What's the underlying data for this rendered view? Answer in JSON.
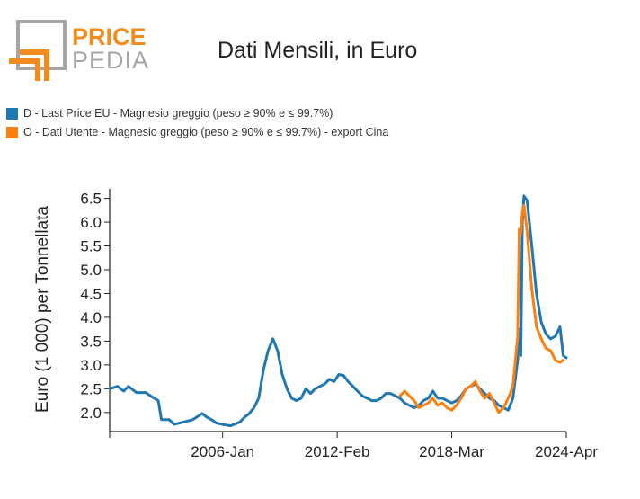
{
  "logo": {
    "line1": "PRICE",
    "line2": "PEDIA",
    "orange": "#f28c1f",
    "grey": "#a6a6a6"
  },
  "title": "Dati Mensili, in Euro",
  "legend": [
    {
      "label": "D - Last Price EU - Magnesio greggio (peso ≥ 90% e ≤ 99.7%)",
      "color": "#1f77b4"
    },
    {
      "label": "O - Dati Utente - Magnesio greggio (peso ≥ 90% e ≤ 99.7%) - export Cina",
      "color": "#ff7f0e"
    }
  ],
  "chart_data": {
    "type": "line",
    "ylabel": "Euro (1 000) per Tonnellata",
    "xlabel": "",
    "xlim": [
      "2000-01",
      "2024-04"
    ],
    "ylim": [
      1.6,
      6.7
    ],
    "yticks": [
      2.0,
      2.5,
      3.0,
      3.5,
      4.0,
      4.5,
      5.0,
      5.5,
      6.0,
      6.5
    ],
    "ytick_labels": [
      "2.0",
      "2.5",
      "3.0",
      "3.5",
      "4.0",
      "4.5",
      "5.0",
      "5.5",
      "6.0",
      "6.5"
    ],
    "xticks": [
      "2000-01",
      "2006-01",
      "2012-02",
      "2018-03",
      "2024-04"
    ],
    "xtick_labels": [
      "",
      "2006-Jan",
      "2012-Feb",
      "2018-Mar",
      "2024-Apr"
    ],
    "grid": false,
    "legend_position": "top-left",
    "series": [
      {
        "name": "D - Last Price EU - Magnesio greggio (peso ≥ 90% e ≤ 99.7%)",
        "color": "#1f77b4",
        "points": [
          [
            "2000-01",
            2.5
          ],
          [
            "2000-06",
            2.55
          ],
          [
            "2000-10",
            2.45
          ],
          [
            "2001-01",
            2.55
          ],
          [
            "2001-06",
            2.42
          ],
          [
            "2001-12",
            2.42
          ],
          [
            "2002-03",
            2.35
          ],
          [
            "2002-08",
            2.25
          ],
          [
            "2002-10",
            1.85
          ],
          [
            "2003-03",
            1.85
          ],
          [
            "2003-06",
            1.75
          ],
          [
            "2003-12",
            1.8
          ],
          [
            "2004-06",
            1.85
          ],
          [
            "2004-12",
            1.98
          ],
          [
            "2005-03",
            1.9
          ],
          [
            "2005-06",
            1.85
          ],
          [
            "2005-09",
            1.78
          ],
          [
            "2006-01",
            1.75
          ],
          [
            "2006-06",
            1.72
          ],
          [
            "2006-12",
            1.8
          ],
          [
            "2007-03",
            1.9
          ],
          [
            "2007-06",
            1.98
          ],
          [
            "2007-09",
            2.1
          ],
          [
            "2007-12",
            2.3
          ],
          [
            "2008-03",
            2.9
          ],
          [
            "2008-06",
            3.3
          ],
          [
            "2008-09",
            3.55
          ],
          [
            "2008-12",
            3.3
          ],
          [
            "2009-03",
            2.8
          ],
          [
            "2009-06",
            2.5
          ],
          [
            "2009-09",
            2.3
          ],
          [
            "2009-12",
            2.25
          ],
          [
            "2010-03",
            2.3
          ],
          [
            "2010-06",
            2.5
          ],
          [
            "2010-09",
            2.4
          ],
          [
            "2010-12",
            2.5
          ],
          [
            "2011-03",
            2.55
          ],
          [
            "2011-06",
            2.6
          ],
          [
            "2011-09",
            2.7
          ],
          [
            "2011-12",
            2.65
          ],
          [
            "2012-03",
            2.8
          ],
          [
            "2012-06",
            2.78
          ],
          [
            "2012-09",
            2.65
          ],
          [
            "2012-12",
            2.55
          ],
          [
            "2013-03",
            2.45
          ],
          [
            "2013-06",
            2.35
          ],
          [
            "2013-09",
            2.3
          ],
          [
            "2013-12",
            2.25
          ],
          [
            "2014-03",
            2.25
          ],
          [
            "2014-06",
            2.3
          ],
          [
            "2014-09",
            2.4
          ],
          [
            "2014-12",
            2.4
          ],
          [
            "2015-03",
            2.35
          ],
          [
            "2015-06",
            2.3
          ],
          [
            "2015-09",
            2.2
          ],
          [
            "2015-12",
            2.15
          ],
          [
            "2016-03",
            2.1
          ],
          [
            "2016-06",
            2.15
          ],
          [
            "2016-09",
            2.25
          ],
          [
            "2016-12",
            2.3
          ],
          [
            "2017-03",
            2.45
          ],
          [
            "2017-06",
            2.3
          ],
          [
            "2017-09",
            2.3
          ],
          [
            "2017-12",
            2.25
          ],
          [
            "2018-03",
            2.2
          ],
          [
            "2018-06",
            2.25
          ],
          [
            "2018-09",
            2.35
          ],
          [
            "2018-12",
            2.5
          ],
          [
            "2019-03",
            2.55
          ],
          [
            "2019-06",
            2.6
          ],
          [
            "2019-09",
            2.5
          ],
          [
            "2019-12",
            2.4
          ],
          [
            "2020-03",
            2.3
          ],
          [
            "2020-06",
            2.25
          ],
          [
            "2020-09",
            2.15
          ],
          [
            "2020-12",
            2.1
          ],
          [
            "2021-03",
            2.05
          ],
          [
            "2021-06",
            2.3
          ],
          [
            "2021-09",
            3.1
          ],
          [
            "2021-10",
            3.75
          ],
          [
            "2021-11",
            3.2
          ],
          [
            "2021-12",
            6.0
          ],
          [
            "2022-01",
            6.55
          ],
          [
            "2022-03",
            6.45
          ],
          [
            "2022-06",
            5.5
          ],
          [
            "2022-09",
            4.5
          ],
          [
            "2022-12",
            3.9
          ],
          [
            "2023-03",
            3.65
          ],
          [
            "2023-06",
            3.55
          ],
          [
            "2023-09",
            3.6
          ],
          [
            "2023-12",
            3.8
          ],
          [
            "2024-02",
            3.2
          ],
          [
            "2024-04",
            3.15
          ]
        ]
      },
      {
        "name": "O - Dati Utente - Magnesio greggio (peso ≥ 90% e ≤ 99.7%) - export Cina",
        "color": "#ff7f0e",
        "points": [
          [
            "2015-06",
            2.35
          ],
          [
            "2015-09",
            2.45
          ],
          [
            "2015-12",
            2.35
          ],
          [
            "2016-03",
            2.25
          ],
          [
            "2016-06",
            2.1
          ],
          [
            "2016-09",
            2.15
          ],
          [
            "2016-12",
            2.2
          ],
          [
            "2017-03",
            2.3
          ],
          [
            "2017-06",
            2.15
          ],
          [
            "2017-09",
            2.2
          ],
          [
            "2017-12",
            2.1
          ],
          [
            "2018-03",
            2.05
          ],
          [
            "2018-06",
            2.15
          ],
          [
            "2018-09",
            2.3
          ],
          [
            "2018-12",
            2.5
          ],
          [
            "2019-03",
            2.55
          ],
          [
            "2019-06",
            2.65
          ],
          [
            "2019-09",
            2.45
          ],
          [
            "2019-12",
            2.3
          ],
          [
            "2020-03",
            2.4
          ],
          [
            "2020-06",
            2.2
          ],
          [
            "2020-09",
            2.0
          ],
          [
            "2020-12",
            2.1
          ],
          [
            "2021-03",
            2.3
          ],
          [
            "2021-06",
            2.55
          ],
          [
            "2021-09",
            3.6
          ],
          [
            "2021-10",
            5.85
          ],
          [
            "2021-11",
            5.75
          ],
          [
            "2021-12",
            6.2
          ],
          [
            "2022-01",
            6.35
          ],
          [
            "2022-03",
            5.8
          ],
          [
            "2022-06",
            4.6
          ],
          [
            "2022-09",
            3.8
          ],
          [
            "2022-12",
            3.55
          ],
          [
            "2023-03",
            3.35
          ],
          [
            "2023-06",
            3.3
          ],
          [
            "2023-09",
            3.1
          ],
          [
            "2023-12",
            3.05
          ],
          [
            "2024-02",
            3.1
          ]
        ]
      }
    ]
  }
}
